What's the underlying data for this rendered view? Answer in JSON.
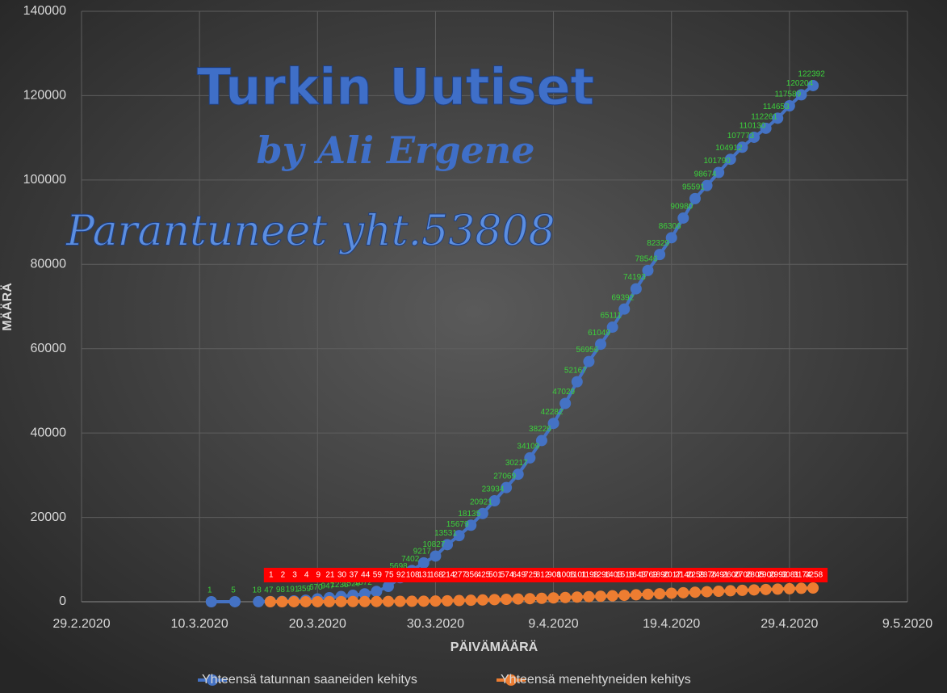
{
  "chart_data": {
    "type": "line",
    "annotations": [
      "Turkin Uutiset",
      "by Ali Ergene",
      "Parantuneet yht.53808"
    ],
    "ylabel": "MÄÄRÄ",
    "xlabel": "PÄIVÄMÄÄRÄ",
    "xlim": [
      "2020-02-29",
      "2020-05-09"
    ],
    "xticks": [
      {
        "value": "2020-02-29",
        "label": "29.2.2020"
      },
      {
        "value": "2020-03-10",
        "label": "10.3.2020"
      },
      {
        "value": "2020-03-20",
        "label": "20.3.2020"
      },
      {
        "value": "2020-03-30",
        "label": "30.3.2020"
      },
      {
        "value": "2020-04-09",
        "label": "9.4.2020"
      },
      {
        "value": "2020-04-19",
        "label": "19.4.2020"
      },
      {
        "value": "2020-04-29",
        "label": "29.4.2020"
      },
      {
        "value": "2020-05-09",
        "label": "9.5.2020"
      }
    ],
    "ylim": [
      0,
      140000
    ],
    "yticks": [
      0,
      20000,
      40000,
      60000,
      80000,
      100000,
      120000,
      140000
    ],
    "grid": true,
    "legend": "bottom",
    "series": [
      {
        "name": "Yhteensä tatunnan saaneiden kehitys",
        "color": "#4472c4",
        "label_color": "#3cd13c",
        "x": [
          "2020-03-11",
          "2020-03-13",
          "2020-03-14",
          "2020-03-15",
          "2020-03-16",
          "2020-03-17",
          "2020-03-18",
          "2020-03-19",
          "2020-03-20",
          "2020-03-21",
          "2020-03-22",
          "2020-03-23",
          "2020-03-24",
          "2020-03-25",
          "2020-03-26",
          "2020-03-27",
          "2020-03-28",
          "2020-03-29",
          "2020-03-30",
          "2020-03-31",
          "2020-04-01",
          "2020-04-02",
          "2020-04-03",
          "2020-04-04",
          "2020-04-05",
          "2020-04-06",
          "2020-04-07",
          "2020-04-08",
          "2020-04-09",
          "2020-04-10",
          "2020-04-11",
          "2020-04-12",
          "2020-04-13",
          "2020-04-14",
          "2020-04-15",
          "2020-04-16",
          "2020-04-17",
          "2020-04-18",
          "2020-04-19",
          "2020-04-20",
          "2020-04-21",
          "2020-04-22",
          "2020-04-23",
          "2020-04-24",
          "2020-04-25",
          "2020-04-26",
          "2020-04-27",
          "2020-04-28",
          "2020-04-29",
          "2020-04-30",
          "2020-05-01"
        ],
        "values": [
          1,
          5,
          null,
          18,
          47,
          98,
          191,
          359,
          670,
          947,
          1236,
          1529,
          1872,
          2433,
          3629,
          5698,
          7402,
          9217,
          10827,
          13531,
          15679,
          18135,
          20921,
          23934,
          27069,
          30217,
          34109,
          38226,
          42282,
          47029,
          52167,
          56956,
          61049,
          65111,
          69392,
          74193,
          78546,
          82329,
          86306,
          90980,
          95591,
          98674,
          101790,
          104912,
          107773,
          110130,
          112261,
          114653,
          117589,
          120204,
          122392
        ]
      },
      {
        "name": "Yhteensä menehtyneiden kehitys",
        "color": "#ed7d31",
        "label_color": "#ffffff",
        "label_background": "#ff0000",
        "x": [
          "2020-03-16",
          "2020-03-17",
          "2020-03-18",
          "2020-03-19",
          "2020-03-20",
          "2020-03-21",
          "2020-03-22",
          "2020-03-23",
          "2020-03-24",
          "2020-03-25",
          "2020-03-26",
          "2020-03-27",
          "2020-03-28",
          "2020-03-29",
          "2020-03-30",
          "2020-03-31",
          "2020-04-01",
          "2020-04-02",
          "2020-04-03",
          "2020-04-04",
          "2020-04-05",
          "2020-04-06",
          "2020-04-07",
          "2020-04-08",
          "2020-04-09",
          "2020-04-10",
          "2020-04-11",
          "2020-04-12",
          "2020-04-13",
          "2020-04-14",
          "2020-04-15",
          "2020-04-16",
          "2020-04-17",
          "2020-04-18",
          "2020-04-19",
          "2020-04-20",
          "2020-04-21",
          "2020-04-22",
          "2020-04-23",
          "2020-04-24",
          "2020-04-25",
          "2020-04-26",
          "2020-04-27",
          "2020-04-28",
          "2020-04-29",
          "2020-04-30",
          "2020-05-01"
        ],
        "values": [
          1,
          2,
          3,
          4,
          9,
          21,
          30,
          37,
          44,
          59,
          75,
          92,
          108,
          131,
          168,
          214,
          277,
          356,
          425,
          501,
          574,
          649,
          725,
          812,
          908,
          1006,
          1101,
          1198,
          1296,
          1403,
          1518,
          1643,
          1769,
          1890,
          2017,
          2140,
          2259,
          2376,
          2491,
          2600,
          2706,
          2805,
          2900,
          2992,
          3081,
          3174,
          3258
        ]
      }
    ]
  }
}
